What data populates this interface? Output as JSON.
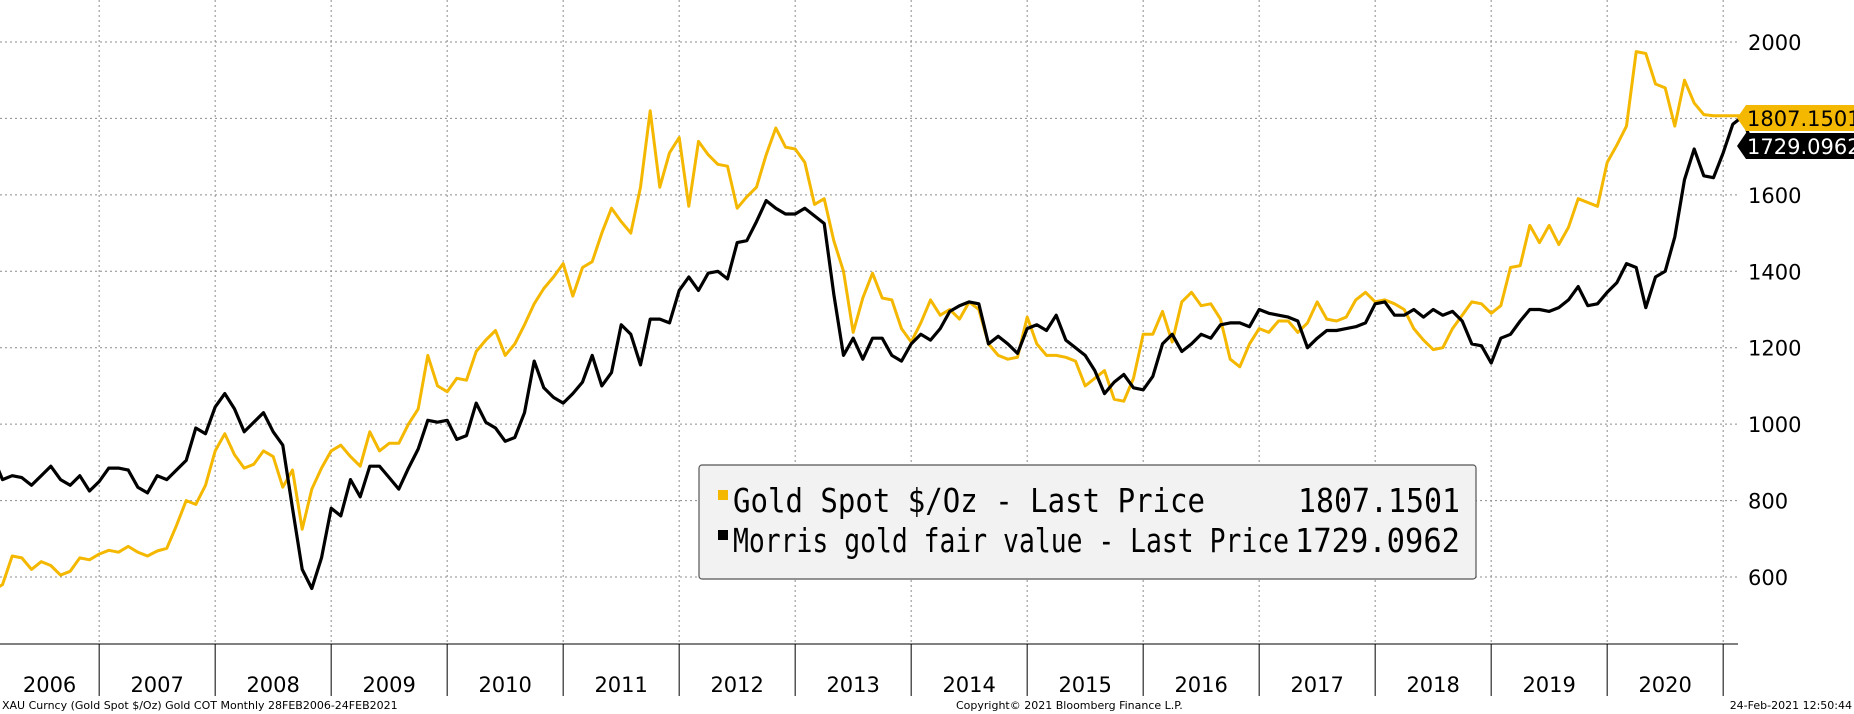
{
  "chart_data": {
    "type": "line",
    "x_start": "2006-02",
    "x_frequency": "monthly",
    "x_ticks": [
      "2006",
      "2007",
      "2008",
      "2009",
      "2010",
      "2011",
      "2012",
      "2013",
      "2014",
      "2015",
      "2016",
      "2017",
      "2018",
      "2019",
      "2020"
    ],
    "y_ticks": [
      600,
      800,
      1000,
      1200,
      1400,
      1600,
      2000
    ],
    "ylim": [
      420,
      2110
    ],
    "grid": true,
    "legend_position": "center-bottom",
    "series": [
      {
        "name": "Gold Spot   $/Oz - Last Price",
        "color": "#f5b800",
        "last_price": "1807.1501",
        "values": [
          565,
          580,
          655,
          650,
          620,
          640,
          630,
          605,
          615,
          650,
          645,
          660,
          670,
          665,
          680,
          665,
          655,
          668,
          675,
          735,
          800,
          790,
          840,
          930,
          975,
          920,
          885,
          895,
          930,
          915,
          835,
          880,
          725,
          830,
          885,
          930,
          945,
          915,
          890,
          980,
          930,
          950,
          950,
          1000,
          1040,
          1180,
          1100,
          1085,
          1120,
          1115,
          1190,
          1220,
          1245,
          1180,
          1210,
          1260,
          1315,
          1355,
          1385,
          1420,
          1335,
          1410,
          1425,
          1500,
          1565,
          1530,
          1500,
          1620,
          1820,
          1620,
          1710,
          1750,
          1570,
          1740,
          1705,
          1680,
          1675,
          1565,
          1595,
          1620,
          1705,
          1775,
          1725,
          1720,
          1685,
          1575,
          1590,
          1480,
          1400,
          1240,
          1330,
          1395,
          1330,
          1325,
          1250,
          1215,
          1265,
          1325,
          1285,
          1300,
          1275,
          1320,
          1300,
          1210,
          1180,
          1170,
          1175,
          1280,
          1210,
          1180,
          1180,
          1175,
          1165,
          1100,
          1120,
          1140,
          1065,
          1060,
          1120,
          1235,
          1235,
          1295,
          1215,
          1320,
          1345,
          1310,
          1315,
          1275,
          1170,
          1150,
          1210,
          1250,
          1240,
          1270,
          1270,
          1240,
          1265,
          1320,
          1275,
          1270,
          1280,
          1325,
          1345,
          1320,
          1325,
          1315,
          1300,
          1250,
          1220,
          1195,
          1200,
          1250,
          1285,
          1320,
          1315,
          1290,
          1310,
          1410,
          1415,
          1520,
          1475,
          1520,
          1470,
          1515,
          1590,
          1580,
          1570,
          1685,
          1730,
          1780,
          1975,
          1970,
          1890,
          1880,
          1780,
          1900,
          1840,
          1810,
          1807
        ]
      },
      {
        "name": "Morris gold fair value - Last Price",
        "color": "#000000",
        "last_price": "1729.0962",
        "values": [
          915,
          855,
          865,
          860,
          840,
          865,
          890,
          855,
          840,
          865,
          825,
          850,
          885,
          885,
          880,
          835,
          820,
          865,
          855,
          880,
          905,
          990,
          975,
          1045,
          1080,
          1040,
          980,
          1005,
          1030,
          980,
          945,
          780,
          620,
          570,
          650,
          780,
          760,
          855,
          810,
          890,
          890,
          860,
          830,
          885,
          935,
          1010,
          1005,
          1010,
          960,
          970,
          1055,
          1005,
          990,
          955,
          965,
          1030,
          1165,
          1095,
          1070,
          1055,
          1080,
          1110,
          1180,
          1100,
          1135,
          1260,
          1235,
          1155,
          1275,
          1275,
          1265,
          1350,
          1385,
          1350,
          1395,
          1400,
          1380,
          1475,
          1480,
          1530,
          1585,
          1565,
          1550,
          1550,
          1565,
          1545,
          1525,
          1340,
          1180,
          1225,
          1170,
          1225,
          1225,
          1180,
          1165,
          1210,
          1235,
          1220,
          1250,
          1295,
          1310,
          1320,
          1315,
          1210,
          1230,
          1210,
          1185,
          1250,
          1260,
          1245,
          1285,
          1220,
          1200,
          1180,
          1140,
          1080,
          1110,
          1130,
          1095,
          1090,
          1125,
          1210,
          1235,
          1190,
          1210,
          1235,
          1225,
          1260,
          1265,
          1265,
          1255,
          1300,
          1290,
          1285,
          1280,
          1270,
          1200,
          1225,
          1245,
          1245,
          1250,
          1255,
          1265,
          1315,
          1320,
          1285,
          1285,
          1300,
          1280,
          1300,
          1285,
          1295,
          1270,
          1210,
          1205,
          1160,
          1225,
          1235,
          1270,
          1300,
          1300,
          1295,
          1305,
          1325,
          1360,
          1310,
          1315,
          1345,
          1370,
          1420,
          1410,
          1305,
          1385,
          1400,
          1490,
          1640,
          1720,
          1650,
          1645,
          1710,
          1785,
          1805,
          1729
        ]
      }
    ],
    "legend_entries": [
      {
        "label": "Gold Spot   $/Oz - Last Price",
        "value": "1807.1501"
      },
      {
        "label": "Morris gold fair value - Last Price",
        "value": "1729.0962"
      }
    ]
  },
  "footer": {
    "left": "XAU Curncy (Gold Spot  $/Oz) Gold COT  Monthly 28FEB2006-24FEB2021",
    "center": "Copyright© 2021 Bloomberg Finance L.P.",
    "right": "24-Feb-2021 12:50:44"
  }
}
